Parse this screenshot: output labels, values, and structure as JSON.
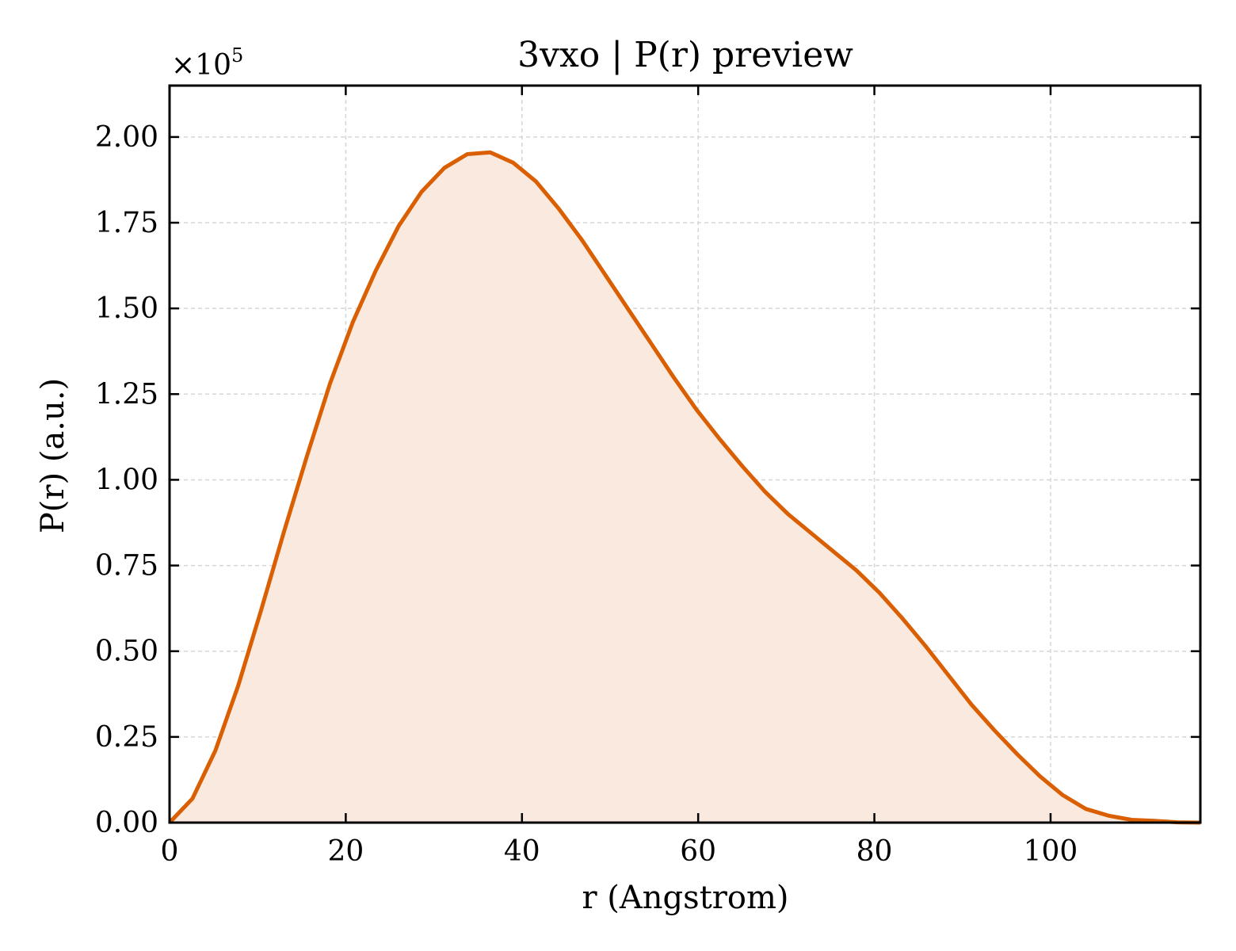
{
  "chart_data": {
    "type": "area",
    "title": "3vxo | P(r) preview",
    "xlabel": "r (Angstrom)",
    "ylabel": "P(r) (a.u.)",
    "y_multiplier_label": "×10",
    "y_multiplier_exponent": "5",
    "xlim": [
      0,
      117
    ],
    "ylim": [
      0,
      2.15
    ],
    "xticks": [
      0,
      20,
      40,
      60,
      80,
      100
    ],
    "xtick_labels": [
      "0",
      "20",
      "40",
      "60",
      "80",
      "100"
    ],
    "yticks": [
      0,
      0.25,
      0.5,
      0.75,
      1.0,
      1.25,
      1.5,
      1.75,
      2.0
    ],
    "ytick_labels": [
      "0.00",
      "0.25",
      "0.50",
      "0.75",
      "1.00",
      "1.25",
      "1.50",
      "1.75",
      "2.00"
    ],
    "grid": true,
    "line_color": "#d95f02",
    "fill_color": "#fae9de",
    "series": [
      {
        "x": [
          0,
          2.6,
          5.2,
          7.8,
          10.4,
          13.0,
          15.6,
          18.2,
          20.8,
          23.4,
          26.0,
          28.6,
          31.2,
          33.8,
          36.4,
          39.0,
          41.6,
          44.2,
          46.8,
          49.4,
          52.0,
          54.6,
          57.2,
          59.8,
          62.4,
          65.0,
          67.6,
          70.2,
          72.8,
          75.4,
          78.0,
          80.6,
          83.2,
          85.8,
          88.4,
          91.0,
          93.6,
          96.2,
          98.8,
          101.4,
          104.0,
          106.6,
          109.2,
          111.8,
          114.4,
          117.0
        ],
        "values": [
          0.0,
          0.07,
          0.21,
          0.4,
          0.62,
          0.85,
          1.07,
          1.28,
          1.46,
          1.61,
          1.74,
          1.84,
          1.91,
          1.95,
          1.955,
          1.925,
          1.87,
          1.79,
          1.7,
          1.6,
          1.5,
          1.4,
          1.3,
          1.205,
          1.12,
          1.04,
          0.965,
          0.9,
          0.845,
          0.79,
          0.735,
          0.67,
          0.595,
          0.515,
          0.43,
          0.345,
          0.27,
          0.2,
          0.135,
          0.08,
          0.04,
          0.02,
          0.008,
          0.005,
          0.001,
          0.0
        ]
      }
    ]
  }
}
